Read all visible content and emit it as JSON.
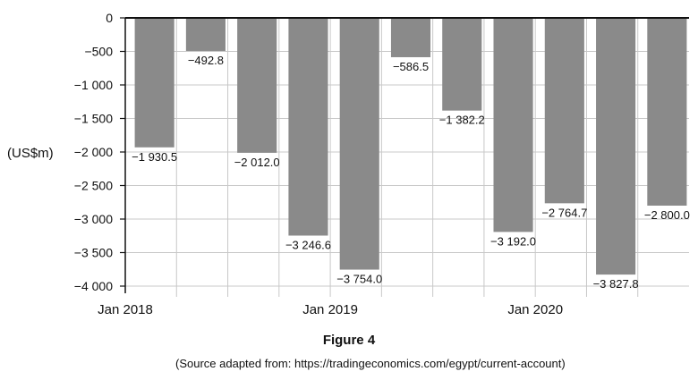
{
  "figure": {
    "title": "Figure 4",
    "source": "(Source adapted from: https://tradingeconomics.com/egypt/current-account)"
  },
  "chart_data": {
    "type": "bar",
    "ylabel": "(US$m)",
    "ylim": [
      -4000,
      0
    ],
    "yticks": [
      0,
      -500,
      -1000,
      -1500,
      -2000,
      -2500,
      -3000,
      -3500,
      -4000
    ],
    "ytick_labels": [
      "0",
      "−500",
      "−1 000",
      "−1 500",
      "−2 000",
      "−2 500",
      "−3 000",
      "−3 500",
      "−4 000"
    ],
    "xtick_labels": [
      "Jan 2018",
      "Jan 2019",
      "Jan 2020"
    ],
    "values": [
      -1930.5,
      -492.8,
      -2012.0,
      -3246.6,
      -3754.0,
      -586.5,
      -1382.2,
      -3192.0,
      -2764.7,
      -3827.8,
      -2800.0
    ],
    "value_labels": [
      "−1 930.5",
      "−492.8",
      "−2 012.0",
      "−3 246.6",
      "−3 754.0",
      "−586.5",
      "−1 382.2",
      "−3 192.0",
      "−2 764.7",
      "−3 827.8",
      "−2 800.0"
    ],
    "bar_color": "#8a8a8a",
    "grid": true,
    "grid_color": "#c8c8c8"
  }
}
